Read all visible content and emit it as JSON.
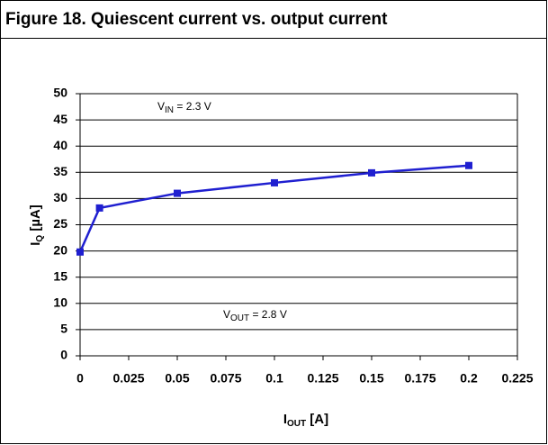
{
  "chart_data": {
    "type": "line",
    "title": "Figure 18. Quiescent current vs. output current",
    "x": [
      0,
      0.01,
      0.05,
      0.1,
      0.15,
      0.2
    ],
    "series": [
      {
        "name": "IQ",
        "color": "#1f1fd0",
        "values": [
          19.8,
          28.2,
          31,
          33,
          34.9,
          36.3
        ]
      }
    ],
    "xlim": [
      0,
      0.225
    ],
    "xticks": [
      0,
      0.025,
      0.05,
      0.075,
      0.1,
      0.125,
      0.15,
      0.175,
      0.2,
      0.225
    ],
    "ylim": [
      0,
      50
    ],
    "yticks": [
      0,
      5,
      10,
      15,
      20,
      25,
      30,
      35,
      40,
      45,
      50
    ],
    "grid": true,
    "xlabel": {
      "main": "I",
      "sub": "OUT",
      "rest": " [A]"
    },
    "ylabel": {
      "main": "I",
      "sub": "Q",
      "rest": " [µA]"
    },
    "annotations": [
      {
        "main": "V",
        "sub": "IN",
        "rest": " = 2.3 V"
      },
      {
        "main": "V",
        "sub": "OUT",
        "rest": " = 2.8 V"
      }
    ]
  }
}
